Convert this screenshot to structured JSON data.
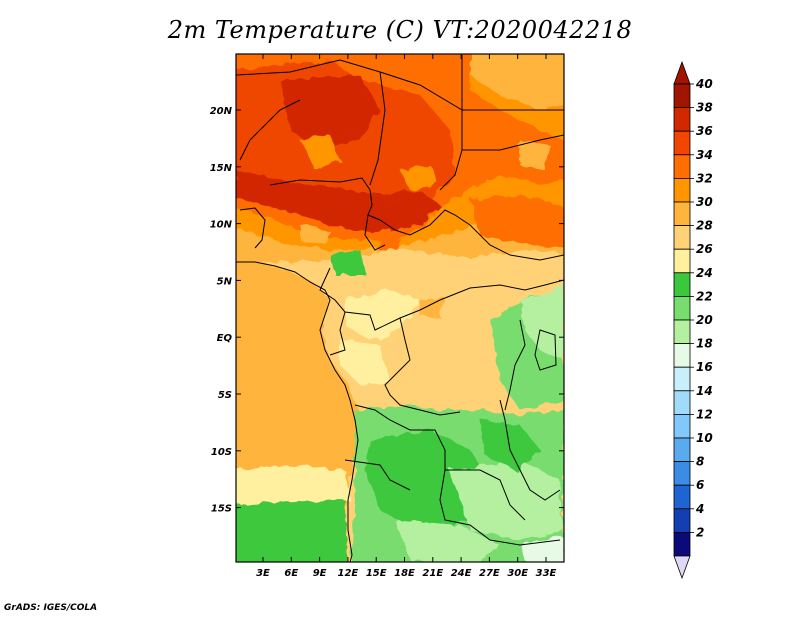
{
  "title": "2m Temperature (C) VT:2020042218",
  "credit": "GrADS: IGES/COLA",
  "lat_labels": [
    "20N",
    "15N",
    "10N",
    "5N",
    "EQ",
    "5S",
    "10S",
    "15S"
  ],
  "lon_labels": [
    "3E",
    "6E",
    "9E",
    "12E",
    "15E",
    "18E",
    "21E",
    "24E",
    "27E",
    "30E",
    "33E"
  ],
  "colorbar": {
    "levels": [
      "2",
      "4",
      "6",
      "8",
      "10",
      "12",
      "14",
      "16",
      "18",
      "20",
      "22",
      "24",
      "26",
      "28",
      "30",
      "32",
      "34",
      "36",
      "38",
      "40"
    ],
    "colors": [
      "#0a0a78",
      "#1240b4",
      "#1e64d2",
      "#3c8ce6",
      "#5aaaf0",
      "#82c8fa",
      "#a0dcfa",
      "#c8f0fa",
      "#e6fae6",
      "#b4f0a0",
      "#78dc6e",
      "#3cc83c",
      "#fff0a0",
      "#ffd278",
      "#ffb43c",
      "#ff9600",
      "#ff6e00",
      "#f04600",
      "#d22800",
      "#a01400"
    ],
    "under_color": "#e0d8f4",
    "over_color": "#a01400"
  }
}
